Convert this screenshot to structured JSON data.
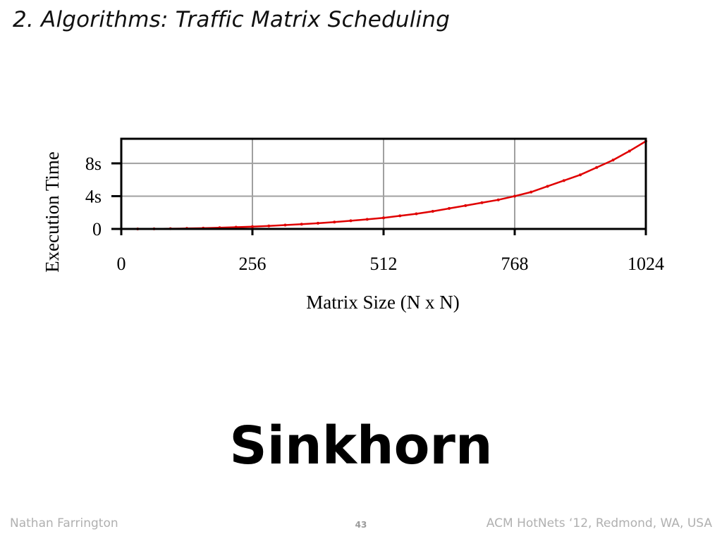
{
  "slide": {
    "title": "2. Algorithms: Traffic Matrix Scheduling",
    "headline": "Sinkhorn"
  },
  "footer": {
    "author": "Nathan Farrington",
    "page_number": "43",
    "venue": "ACM HotNets ‘12, Redmond, WA, USA"
  },
  "chart_data": {
    "type": "scatter",
    "xlabel": "Matrix Size (N x N)",
    "ylabel": "Execution Time",
    "xlim": [
      0,
      1024
    ],
    "ylim": [
      0,
      11
    ],
    "x_ticks": [
      0,
      256,
      512,
      768,
      1024
    ],
    "x_tick_labels": [
      "0",
      "256",
      "512",
      "768",
      "1024"
    ],
    "y_ticks": [
      0,
      4,
      8
    ],
    "y_tick_labels": [
      "0",
      "4s",
      "8s"
    ],
    "grid": true,
    "series": [
      {
        "color": "#e00000",
        "x": [
          0,
          32,
          64,
          96,
          128,
          160,
          192,
          224,
          256,
          288,
          320,
          352,
          384,
          416,
          448,
          480,
          512,
          544,
          576,
          608,
          640,
          672,
          704,
          736,
          768,
          800,
          832,
          864,
          896,
          928,
          960,
          992,
          1024
        ],
        "y": [
          0,
          0.0,
          0.01,
          0.03,
          0.06,
          0.1,
          0.15,
          0.21,
          0.28,
          0.37,
          0.47,
          0.58,
          0.7,
          0.84,
          1.0,
          1.17,
          1.35,
          1.6,
          1.85,
          2.15,
          2.5,
          2.85,
          3.2,
          3.55,
          4.0,
          4.5,
          5.2,
          5.9,
          6.6,
          7.5,
          8.4,
          9.5,
          10.7
        ]
      }
    ]
  }
}
